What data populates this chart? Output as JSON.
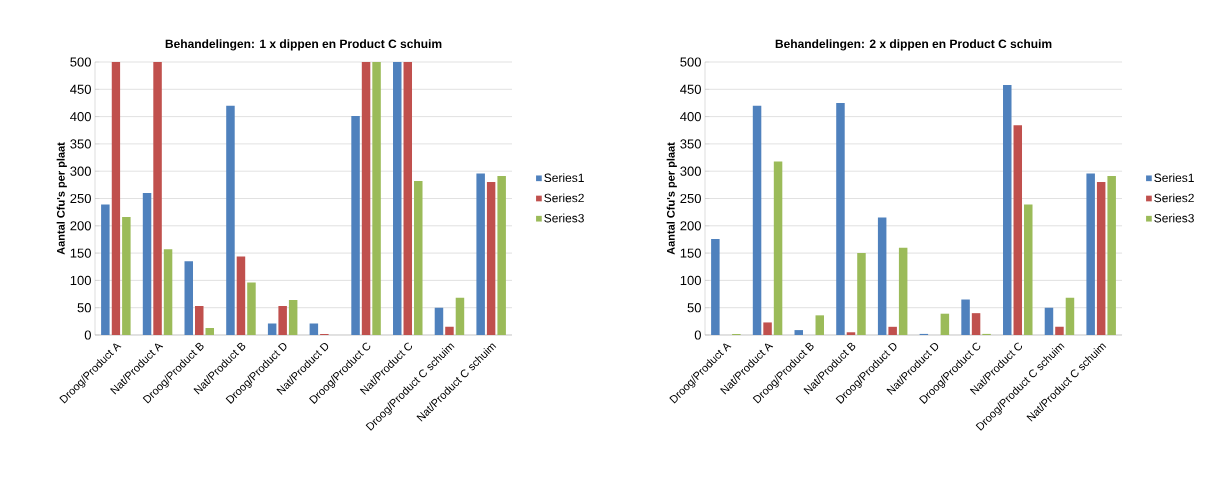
{
  "chart_data": [
    {
      "type": "bar",
      "title": "Behandelingen: 1 x dippen en Product C schuim",
      "ylabel": "Aantal Cfu's per plaat",
      "categories": [
        "Droog/Product A",
        "Nat/Product A",
        "Droog/Product B",
        "Nat/Product B",
        "Droog/Product D",
        "Nat/Product D",
        "Droog/Product C",
        "Nat/Product C",
        "Droog/Product C schuim",
        "Nat/Product C schuim"
      ],
      "series": [
        {
          "name": "Series1",
          "color": "#4f81bd",
          "values": [
            239,
            260,
            135,
            420,
            21,
            21,
            401,
            500,
            50,
            296
          ]
        },
        {
          "name": "Series2",
          "color": "#c0504d",
          "values": [
            500,
            500,
            53,
            144,
            53,
            2,
            500,
            500,
            15,
            280
          ]
        },
        {
          "name": "Series3",
          "color": "#9bbb59",
          "values": [
            216,
            157,
            13,
            96,
            64,
            0,
            500,
            282,
            68,
            291
          ]
        }
      ],
      "ylim": [
        0,
        500
      ],
      "yticks": [
        0,
        50,
        100,
        150,
        200,
        250,
        300,
        350,
        400,
        450,
        500
      ],
      "grid": "y",
      "legend": "right"
    },
    {
      "type": "bar",
      "title": "Behandelingen: 2 x dippen en Product C schuim",
      "ylabel": "Aantal Cfu's per plaat",
      "categories": [
        "Droog/Product A",
        "Nat/Product A",
        "Droog/Product B",
        "Nat/Product B",
        "Droog/Product D",
        "Nat/Product D",
        "Droog/Product C",
        "Nat/Product C",
        "Droog/Product C schuim",
        "Nat/Product C schuim"
      ],
      "series": [
        {
          "name": "Series1",
          "color": "#4f81bd",
          "values": [
            176,
            420,
            9,
            425,
            215,
            2,
            65,
            458,
            50,
            296
          ]
        },
        {
          "name": "Series2",
          "color": "#c0504d",
          "values": [
            0,
            23,
            0,
            5,
            15,
            0,
            40,
            384,
            15,
            280
          ]
        },
        {
          "name": "Series3",
          "color": "#9bbb59",
          "values": [
            2,
            318,
            36,
            150,
            160,
            39,
            2,
            239,
            68,
            291
          ]
        }
      ],
      "ylim": [
        0,
        500
      ],
      "yticks": [
        0,
        50,
        100,
        150,
        200,
        250,
        300,
        350,
        400,
        450,
        500
      ],
      "grid": "y",
      "legend": "right"
    }
  ]
}
